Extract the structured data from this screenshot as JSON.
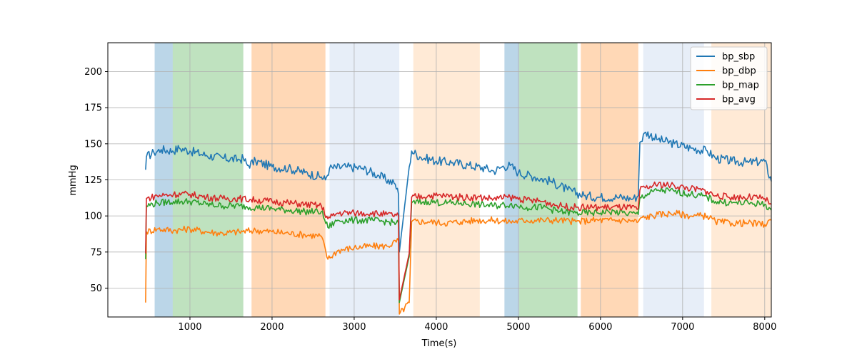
{
  "chart_data": {
    "type": "line",
    "title": "",
    "xlabel": "Time(s)",
    "ylabel": "mmHg",
    "xlim": [
      0,
      8080
    ],
    "ylim": [
      30,
      220
    ],
    "x_ticks": [
      1000,
      2000,
      3000,
      4000,
      5000,
      6000,
      7000,
      8000
    ],
    "y_ticks": [
      50,
      75,
      100,
      125,
      150,
      175,
      200
    ],
    "x_tick_labels": [
      "1000",
      "2000",
      "3000",
      "4000",
      "5000",
      "6000",
      "7000",
      "8000"
    ],
    "y_tick_labels": [
      "50",
      "75",
      "100",
      "125",
      "150",
      "175",
      "200"
    ],
    "grid": true,
    "legend_position": "top-right",
    "shaded_regions": [
      {
        "start": 570,
        "end": 790,
        "color": "#1f77b4",
        "opacity": 0.3
      },
      {
        "start": 790,
        "end": 1650,
        "color": "#2ca02c",
        "opacity": 0.3
      },
      {
        "start": 1750,
        "end": 2650,
        "color": "#ff7f0e",
        "opacity": 0.3
      },
      {
        "start": 2700,
        "end": 3550,
        "color": "#aec7e8",
        "opacity": 0.3
      },
      {
        "start": 3720,
        "end": 4530,
        "color": "#ffbb78",
        "opacity": 0.3
      },
      {
        "start": 4830,
        "end": 5010,
        "color": "#1f77b4",
        "opacity": 0.3
      },
      {
        "start": 5010,
        "end": 5720,
        "color": "#2ca02c",
        "opacity": 0.3
      },
      {
        "start": 5760,
        "end": 6460,
        "color": "#ff7f0e",
        "opacity": 0.3
      },
      {
        "start": 6520,
        "end": 7260,
        "color": "#aec7e8",
        "opacity": 0.3
      },
      {
        "start": 7350,
        "end": 8080,
        "color": "#ffbb78",
        "opacity": 0.3
      }
    ],
    "series": [
      {
        "name": "bp_sbp",
        "color": "#1f77b4",
        "points": [
          [
            460,
            132
          ],
          [
            470,
            141
          ],
          [
            560,
            144
          ],
          [
            650,
            146
          ],
          [
            790,
            145
          ],
          [
            870,
            147
          ],
          [
            1000,
            145
          ],
          [
            1200,
            142
          ],
          [
            1400,
            140
          ],
          [
            1600,
            139
          ],
          [
            1650,
            140
          ],
          [
            1700,
            135
          ],
          [
            1800,
            138
          ],
          [
            2000,
            134
          ],
          [
            2200,
            133
          ],
          [
            2400,
            130
          ],
          [
            2600,
            127
          ],
          [
            2650,
            125
          ],
          [
            2700,
            133
          ],
          [
            2900,
            134
          ],
          [
            3100,
            133
          ],
          [
            3300,
            128
          ],
          [
            3500,
            122
          ],
          [
            3540,
            115
          ],
          [
            3550,
            75
          ],
          [
            3670,
            134
          ],
          [
            3700,
            145
          ],
          [
            3800,
            141
          ],
          [
            4000,
            138
          ],
          [
            4200,
            137
          ],
          [
            4400,
            135
          ],
          [
            4600,
            133
          ],
          [
            4700,
            131
          ],
          [
            4800,
            134
          ],
          [
            4900,
            135
          ],
          [
            5000,
            130
          ],
          [
            5200,
            127
          ],
          [
            5400,
            124
          ],
          [
            5600,
            118
          ],
          [
            5800,
            114
          ],
          [
            6000,
            113
          ],
          [
            6200,
            113
          ],
          [
            6400,
            112
          ],
          [
            6460,
            114
          ],
          [
            6480,
            151
          ],
          [
            6550,
            158
          ],
          [
            6700,
            153
          ],
          [
            6900,
            150
          ],
          [
            7100,
            147
          ],
          [
            7300,
            145
          ],
          [
            7400,
            140
          ],
          [
            7600,
            138
          ],
          [
            7800,
            137
          ],
          [
            8000,
            138
          ],
          [
            8080,
            124
          ]
        ]
      },
      {
        "name": "bp_dbp",
        "color": "#ff7f0e",
        "points": [
          [
            460,
            40
          ],
          [
            470,
            89
          ],
          [
            600,
            91
          ],
          [
            800,
            90
          ],
          [
            1000,
            91
          ],
          [
            1200,
            89
          ],
          [
            1400,
            88
          ],
          [
            1600,
            89
          ],
          [
            1800,
            90
          ],
          [
            2000,
            89
          ],
          [
            2200,
            88
          ],
          [
            2400,
            87
          ],
          [
            2600,
            86
          ],
          [
            2680,
            70
          ],
          [
            2800,
            76
          ],
          [
            3000,
            78
          ],
          [
            3200,
            79
          ],
          [
            3400,
            79
          ],
          [
            3540,
            83
          ],
          [
            3550,
            32
          ],
          [
            3670,
            40
          ],
          [
            3700,
            96
          ],
          [
            3900,
            96
          ],
          [
            4100,
            95
          ],
          [
            4300,
            96
          ],
          [
            4500,
            97
          ],
          [
            4700,
            97
          ],
          [
            4900,
            96
          ],
          [
            5100,
            97
          ],
          [
            5300,
            97
          ],
          [
            5500,
            97
          ],
          [
            5700,
            96
          ],
          [
            5900,
            97
          ],
          [
            6100,
            97
          ],
          [
            6300,
            97
          ],
          [
            6460,
            96
          ],
          [
            6480,
            98
          ],
          [
            6700,
            101
          ],
          [
            6900,
            102
          ],
          [
            7100,
            100
          ],
          [
            7300,
            100
          ],
          [
            7400,
            96
          ],
          [
            7600,
            95
          ],
          [
            7800,
            95
          ],
          [
            8000,
            94
          ],
          [
            8080,
            97
          ]
        ]
      },
      {
        "name": "bp_map",
        "color": "#2ca02c",
        "points": [
          [
            460,
            70
          ],
          [
            470,
            107
          ],
          [
            600,
            109
          ],
          [
            800,
            110
          ],
          [
            1000,
            110
          ],
          [
            1200,
            108
          ],
          [
            1400,
            107
          ],
          [
            1600,
            107
          ],
          [
            1800,
            106
          ],
          [
            2000,
            105
          ],
          [
            2200,
            104
          ],
          [
            2400,
            103
          ],
          [
            2600,
            103
          ],
          [
            2680,
            92
          ],
          [
            2800,
            97
          ],
          [
            3000,
            97
          ],
          [
            3200,
            97
          ],
          [
            3400,
            96
          ],
          [
            3540,
            95
          ],
          [
            3550,
            40
          ],
          [
            3670,
            72
          ],
          [
            3700,
            109
          ],
          [
            3900,
            110
          ],
          [
            4100,
            109
          ],
          [
            4300,
            109
          ],
          [
            4500,
            108
          ],
          [
            4700,
            107
          ],
          [
            4900,
            108
          ],
          [
            5100,
            106
          ],
          [
            5300,
            106
          ],
          [
            5500,
            103
          ],
          [
            5700,
            102
          ],
          [
            5900,
            102
          ],
          [
            6100,
            103
          ],
          [
            6300,
            102
          ],
          [
            6460,
            101
          ],
          [
            6480,
            113
          ],
          [
            6700,
            118
          ],
          [
            6900,
            117
          ],
          [
            7100,
            115
          ],
          [
            7300,
            113
          ],
          [
            7400,
            110
          ],
          [
            7600,
            109
          ],
          [
            7800,
            109
          ],
          [
            8000,
            108
          ],
          [
            8080,
            104
          ]
        ]
      },
      {
        "name": "bp_avg",
        "color": "#d62728",
        "points": [
          [
            460,
            74
          ],
          [
            470,
            112
          ],
          [
            600,
            114
          ],
          [
            800,
            115
          ],
          [
            1000,
            115
          ],
          [
            1200,
            113
          ],
          [
            1400,
            112
          ],
          [
            1600,
            112
          ],
          [
            1800,
            111
          ],
          [
            2000,
            110
          ],
          [
            2200,
            109
          ],
          [
            2400,
            108
          ],
          [
            2600,
            107
          ],
          [
            2680,
            98
          ],
          [
            2800,
            102
          ],
          [
            3000,
            102
          ],
          [
            3200,
            102
          ],
          [
            3400,
            101
          ],
          [
            3540,
            100
          ],
          [
            3550,
            42
          ],
          [
            3670,
            74
          ],
          [
            3700,
            113
          ],
          [
            3900,
            114
          ],
          [
            4100,
            114
          ],
          [
            4300,
            113
          ],
          [
            4500,
            113
          ],
          [
            4700,
            112
          ],
          [
            4900,
            113
          ],
          [
            5100,
            111
          ],
          [
            5300,
            110
          ],
          [
            5500,
            107
          ],
          [
            5700,
            106
          ],
          [
            5900,
            106
          ],
          [
            6100,
            106
          ],
          [
            6300,
            106
          ],
          [
            6460,
            105
          ],
          [
            6480,
            118
          ],
          [
            6700,
            122
          ],
          [
            6900,
            121
          ],
          [
            7100,
            119
          ],
          [
            7300,
            117
          ],
          [
            7400,
            114
          ],
          [
            7600,
            113
          ],
          [
            7800,
            113
          ],
          [
            8000,
            112
          ],
          [
            8080,
            108
          ]
        ]
      }
    ]
  }
}
